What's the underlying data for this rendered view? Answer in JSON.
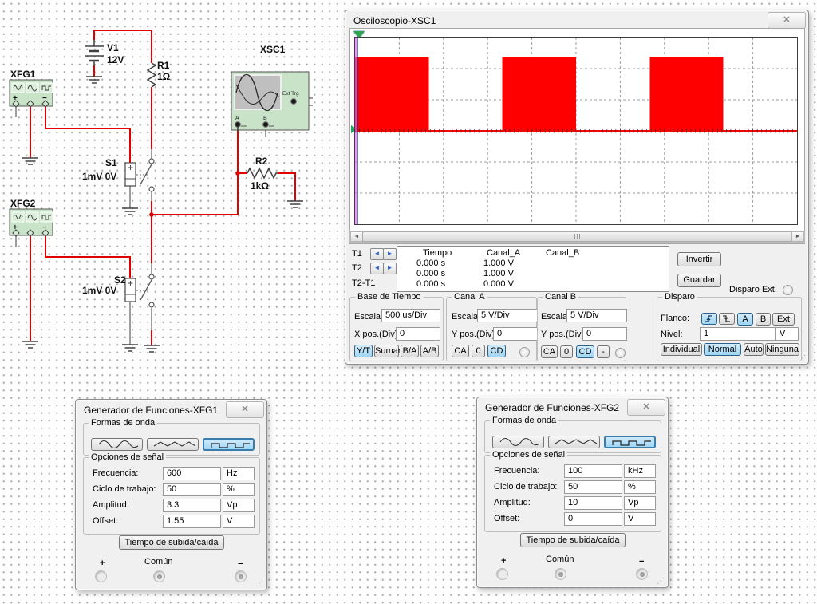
{
  "icons": {
    "close": "✕",
    "arrow_left": "◄",
    "arrow_right": "►",
    "scroll_left": "◄",
    "scroll_right": "►",
    "resize_grip": "⋰"
  },
  "schematic": {
    "xfg1_label": "XFG1",
    "xfg2_label": "XFG2",
    "v1_label": "V1",
    "v1_value": "12V",
    "r1_label": "R1",
    "r1_value": "1Ω",
    "r2_label": "R2",
    "r2_value": "1kΩ",
    "s1_label": "S1",
    "s1_value": "1mV 0V",
    "s2_label": "S2",
    "s2_value": "1mV 0V",
    "xsc1_label": "XSC1",
    "ext_trig_label": "Ext Trg",
    "cha_label": "A",
    "chb_label": "B",
    "plus": "+",
    "minus": "−"
  },
  "scope": {
    "title": "Osciloscopio-XSC1",
    "cursor1": "T1",
    "cursor2": "T2",
    "cursor_diff": "T2-T1",
    "table": {
      "headers": [
        "Tiempo",
        "Canal_A",
        "Canal_B"
      ],
      "rows": [
        [
          "0.000 s",
          "1.000 V",
          ""
        ],
        [
          "0.000 s",
          "1.000 V",
          ""
        ],
        [
          "0.000 s",
          "0.000 V",
          ""
        ]
      ]
    },
    "invert": "Invertir",
    "save": "Guardar",
    "ext_trigger": "Disparo Ext.",
    "timebase": {
      "title": "Base de Tiempo",
      "scale_label": "Escala:",
      "scale": "500 us/Div",
      "x_label": "X pos.(Div):",
      "x": "0",
      "modes": [
        "Y/T",
        "Sumar",
        "B/A",
        "A/B"
      ]
    },
    "channel_a": {
      "title": "Canal A",
      "scale_label": "Escala:",
      "scale": "5 V/Div",
      "y_label": "Y pos.(Div):",
      "y": "0",
      "coupling": [
        "CA",
        "0",
        "CD"
      ]
    },
    "channel_b": {
      "title": "Canal B",
      "scale_label": "Escala:",
      "scale": "5 V/Div",
      "y_label": "Y pos.(Div):",
      "y": "0",
      "coupling": [
        "CA",
        "0",
        "CD",
        "-"
      ]
    },
    "trigger": {
      "title": "Disparo",
      "edge_label": "Flanco:",
      "sources": [
        "A",
        "B",
        "Ext"
      ],
      "level_label": "Nivel:",
      "level": "1",
      "level_unit": "V",
      "modes": [
        "Individual",
        "Normal",
        "Auto",
        "Ninguna"
      ]
    }
  },
  "fgen1": {
    "title": "Generador de Funciones-XFG1",
    "waveforms_title": "Formas de onda",
    "options_title": "Opciones de señal",
    "params": [
      {
        "label": "Frecuencia:",
        "value": "600",
        "unit": "Hz"
      },
      {
        "label": "Ciclo de trabajo:",
        "value": "50",
        "unit": "%"
      },
      {
        "label": "Amplitud:",
        "value": "3.3",
        "unit": "Vp"
      },
      {
        "label": "Offset:",
        "value": "1.55",
        "unit": "V"
      }
    ],
    "rise_fall": "Tiempo de subida/caída",
    "plus": "+",
    "common": "Común",
    "minus": "−"
  },
  "fgen2": {
    "title": "Generador de Funciones-XFG2",
    "waveforms_title": "Formas de onda",
    "options_title": "Opciones de señal",
    "params": [
      {
        "label": "Frecuencia:",
        "value": "100",
        "unit": "kHz"
      },
      {
        "label": "Ciclo de trabajo:",
        "value": "50",
        "unit": "%"
      },
      {
        "label": "Amplitud:",
        "value": "10",
        "unit": "Vp"
      },
      {
        "label": "Offset:",
        "value": "0",
        "unit": "V"
      }
    ],
    "rise_fall": "Tiempo de subida/caída",
    "plus": "+",
    "common": "Común",
    "minus": "−"
  },
  "chart_data": {
    "type": "area",
    "title": "Osciloscopio-XSC1 display",
    "x_divisions": 10,
    "y_divisions": 6,
    "axis_row_from_top": 3,
    "timebase": "500 us/Div",
    "volts_per_div": 5,
    "grid": "dashed",
    "series": [
      {
        "name": "Canal_A",
        "color": "#ff0000",
        "signal": "600 Hz 50% duty gated square, 0 to ~12 V (solid-filled pulses)",
        "high_v": 12,
        "low_v": 0,
        "amplitude_div": 2.37,
        "pulses_div": [
          [
            0,
            1.67
          ],
          [
            3.33,
            5.0
          ],
          [
            6.67,
            8.33
          ]
        ],
        "baseline_div": [
          0,
          10
        ]
      }
    ],
    "cursors": [
      {
        "name": "T1",
        "x_div": 0,
        "color": "#ff4dff"
      },
      {
        "name": "T2",
        "x_div": 0,
        "color": "#24318f"
      }
    ]
  }
}
